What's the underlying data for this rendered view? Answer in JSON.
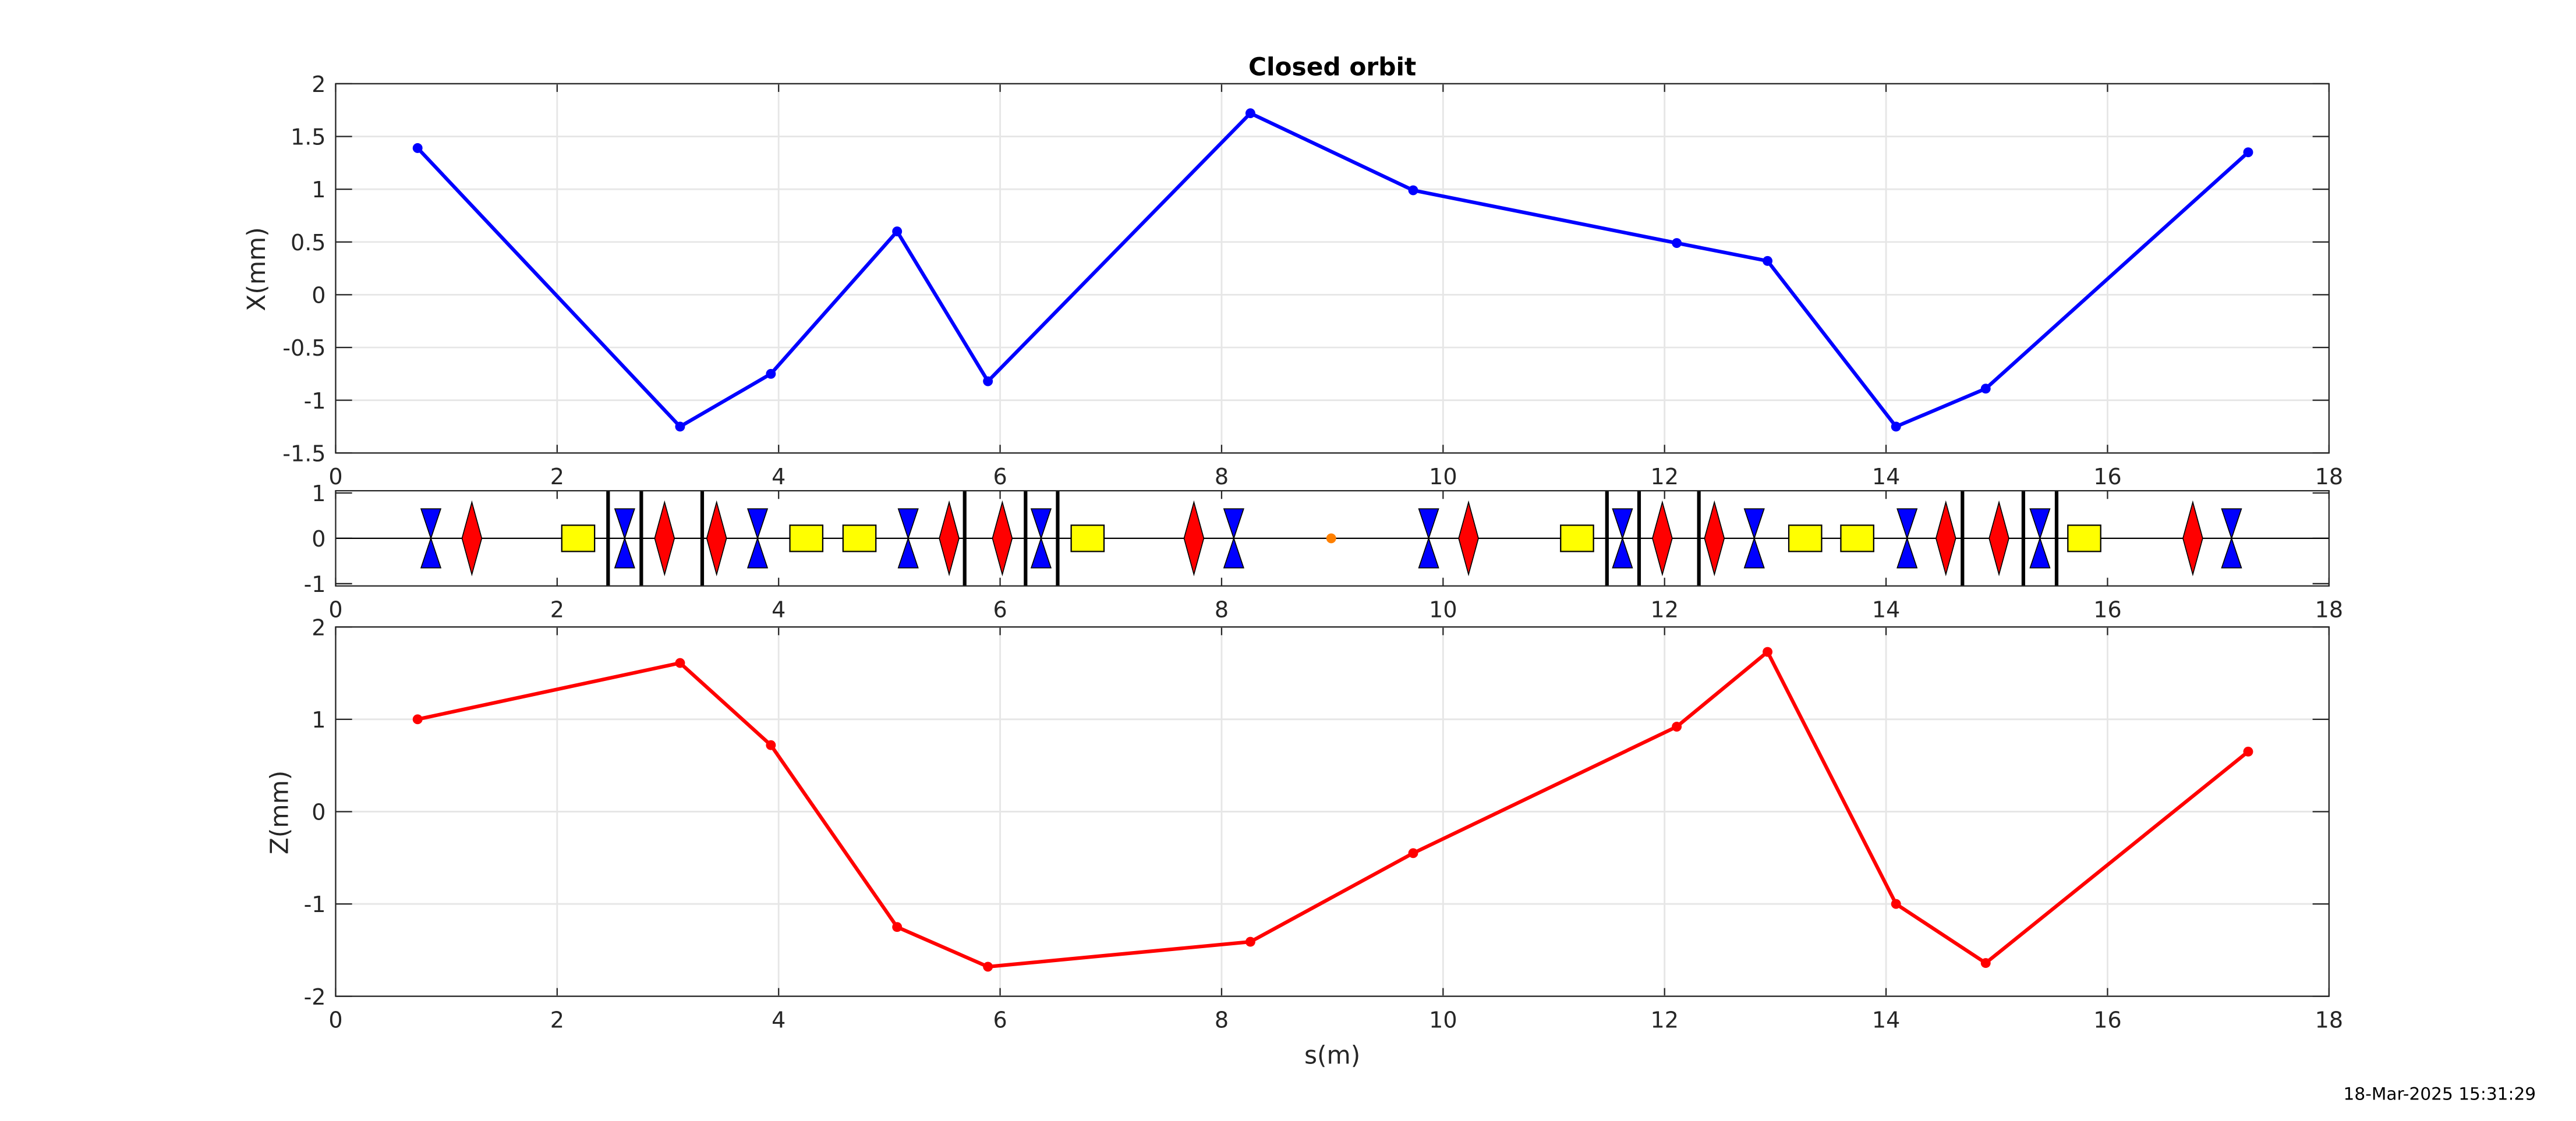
{
  "chart_data": [
    {
      "type": "line",
      "title": "Closed orbit",
      "xlabel": "",
      "ylabel": "X(mm)",
      "xlim": [
        0,
        18
      ],
      "ylim": [
        -1.5,
        2
      ],
      "xticks": [
        0,
        2,
        4,
        6,
        8,
        10,
        12,
        14,
        16,
        18
      ],
      "yticks": [
        -1.5,
        -1,
        -0.5,
        0,
        0.5,
        1,
        1.5,
        2
      ],
      "grid": true,
      "color": "#0000ff",
      "x": [
        0.74,
        3.11,
        3.93,
        5.07,
        5.89,
        8.26,
        9.73,
        12.11,
        12.93,
        14.09,
        14.9,
        17.27
      ],
      "y": [
        1.39,
        -1.25,
        -0.75,
        0.6,
        -0.82,
        1.72,
        0.99,
        0.49,
        0.32,
        -1.25,
        -0.89,
        1.35
      ]
    },
    {
      "type": "lattice",
      "xlim": [
        0,
        18
      ],
      "ylim": [
        -1.05,
        1.05
      ],
      "xticks": [
        0,
        2,
        4,
        6,
        8,
        10,
        12,
        14,
        16,
        18
      ],
      "yticks": [
        -1,
        0,
        1
      ],
      "focusing_quads": {
        "color": "#0000ff",
        "s": [
          0.86,
          2.61,
          3.81,
          5.17,
          6.37,
          8.11,
          9.87,
          11.62,
          12.81,
          14.19,
          15.39,
          17.12
        ]
      },
      "defocusing_quads": {
        "color": "#ff0000",
        "s": [
          1.23,
          2.97,
          3.44,
          5.54,
          6.02,
          7.75,
          10.23,
          11.98,
          12.45,
          14.54,
          15.02,
          16.77
        ]
      },
      "dipoles": {
        "color": "#ffff00",
        "s": [
          2.19,
          4.25,
          4.73,
          6.79,
          11.21,
          13.27,
          13.74,
          15.79
        ]
      },
      "bpms": {
        "color": "#000000",
        "s": [
          2.46,
          2.76,
          3.31,
          5.68,
          6.23,
          6.52,
          11.48,
          11.77,
          12.31,
          14.69,
          15.24,
          15.54
        ]
      },
      "marker": {
        "color": "#ff8000",
        "s": [
          8.99
        ]
      }
    },
    {
      "type": "line",
      "title": "",
      "xlabel": "s(m)",
      "ylabel": "Z(mm)",
      "xlim": [
        0,
        18
      ],
      "ylim": [
        -2,
        2
      ],
      "xticks": [
        0,
        2,
        4,
        6,
        8,
        10,
        12,
        14,
        16,
        18
      ],
      "yticks": [
        -2,
        -1,
        0,
        1,
        2
      ],
      "grid": true,
      "color": "#ff0000",
      "x": [
        0.74,
        3.11,
        3.93,
        5.07,
        5.89,
        8.26,
        9.73,
        12.11,
        12.93,
        14.09,
        14.9,
        17.27
      ],
      "y": [
        1.0,
        1.61,
        0.72,
        -1.25,
        -1.68,
        -1.41,
        -0.45,
        0.92,
        1.73,
        -1.0,
        -1.64,
        0.65
      ]
    }
  ],
  "timestamp": "18-Mar-2025 15:31:29"
}
